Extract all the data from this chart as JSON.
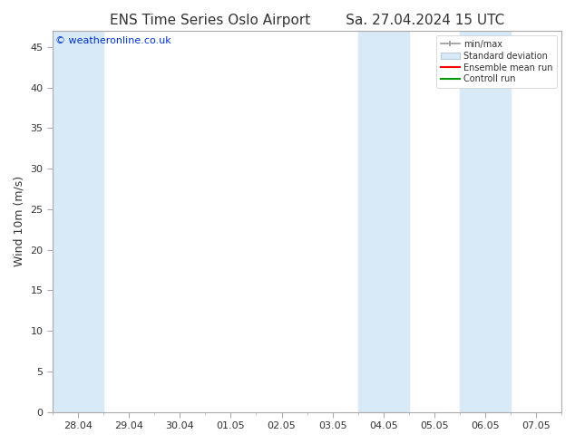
{
  "title_left": "ENS Time Series Oslo Airport",
  "title_right": "Sa. 27.04.2024 15 UTC",
  "ylabel": "Wind 10m (m/s)",
  "ylim": [
    0,
    47
  ],
  "yticks": [
    0,
    5,
    10,
    15,
    20,
    25,
    30,
    35,
    40,
    45
  ],
  "x_labels": [
    "28.04",
    "29.04",
    "30.04",
    "01.05",
    "02.05",
    "03.05",
    "04.05",
    "05.05",
    "06.05",
    "07.05"
  ],
  "x_positions": [
    0,
    1,
    2,
    3,
    4,
    5,
    6,
    7,
    8,
    9
  ],
  "xlim": [
    -0.5,
    9.5
  ],
  "background_color": "#ffffff",
  "plot_bg_color": "#ffffff",
  "shaded_bands": [
    {
      "x_start": -0.5,
      "x_end": 0.5
    },
    {
      "x_start": 5.5,
      "x_end": 6.5
    },
    {
      "x_start": 7.5,
      "x_end": 8.5
    }
  ],
  "shaded_color": "#d8eaf7",
  "watermark_text": "© weatheronline.co.uk",
  "watermark_color": "#0033cc",
  "legend_labels": [
    "min/max",
    "Standard deviation",
    "Ensemble mean run",
    "Controll run"
  ],
  "legend_line_colors": [
    "#999999",
    "#bbccdd",
    "#ff0000",
    "#009900"
  ],
  "font_color": "#333333",
  "tick_font_size": 8,
  "title_font_size": 11,
  "ylabel_font_size": 9,
  "watermark_font_size": 8
}
